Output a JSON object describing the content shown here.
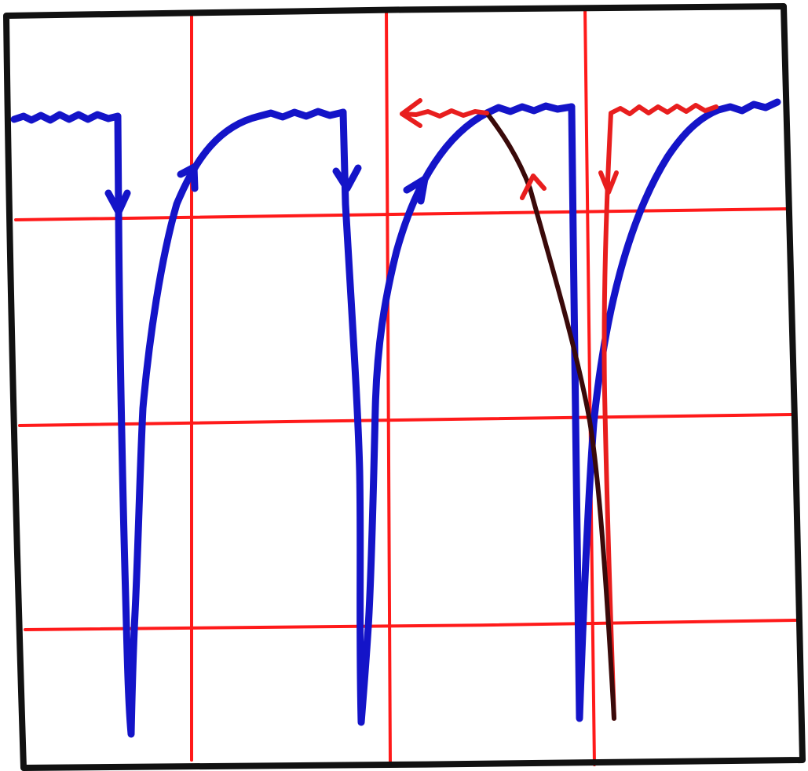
{
  "diagram": {
    "grid": {
      "rows": 4,
      "columns": 4
    },
    "colors": {
      "frame": "#111111",
      "grid": "#ff1a1a",
      "blue_trace": "#1414c8",
      "red_trace": "#e81e1e",
      "dark_trace": "#3a0a0a"
    },
    "traces": [
      {
        "name": "blue-trace-1",
        "color": "blue",
        "arrows": [
          "down",
          "up"
        ]
      },
      {
        "name": "blue-trace-2",
        "color": "blue",
        "arrows": [
          "down",
          "up"
        ]
      },
      {
        "name": "blue-trace-3",
        "color": "blue",
        "arrows": []
      },
      {
        "name": "red-trace-4",
        "color": "red",
        "arrows": [
          "left",
          "up",
          "down"
        ]
      }
    ]
  }
}
